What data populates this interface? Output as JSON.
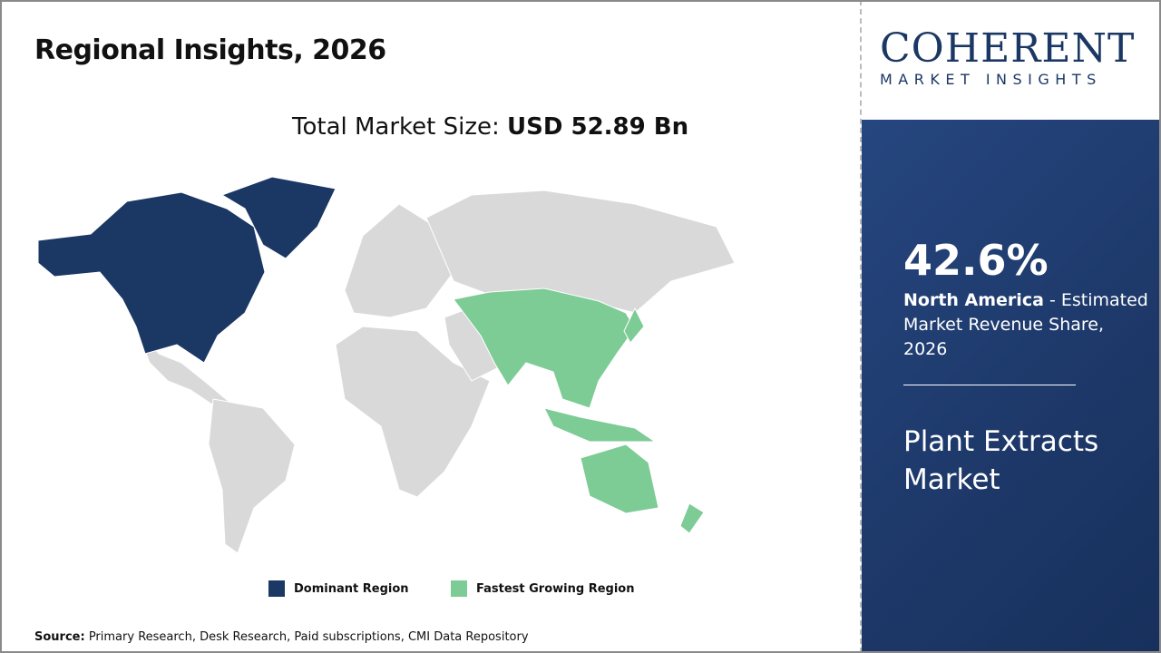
{
  "title": "Regional Insights, 2026",
  "total_label": "Total Market Size: ",
  "total_value": "USD 52.89 Bn",
  "logo": {
    "main": "COHERENT",
    "sub": "MARKET INSIGHTS"
  },
  "stat": {
    "value": "42.6%",
    "region": "North America",
    "text": " - Estimated Market Revenue Share, 2026"
  },
  "market_name": "Plant Extracts Market",
  "legend": [
    {
      "label": "Dominant Region",
      "color": "#1b3764"
    },
    {
      "label": "Fastest Growing Region",
      "color": "#7dcb95"
    }
  ],
  "source": {
    "label": "Source:",
    "text": " Primary Research, Desk Research, Paid subscriptions, CMI Data Repository"
  },
  "colors": {
    "other_regions": "#d9d9d9",
    "panel": "#1f3a6e"
  }
}
